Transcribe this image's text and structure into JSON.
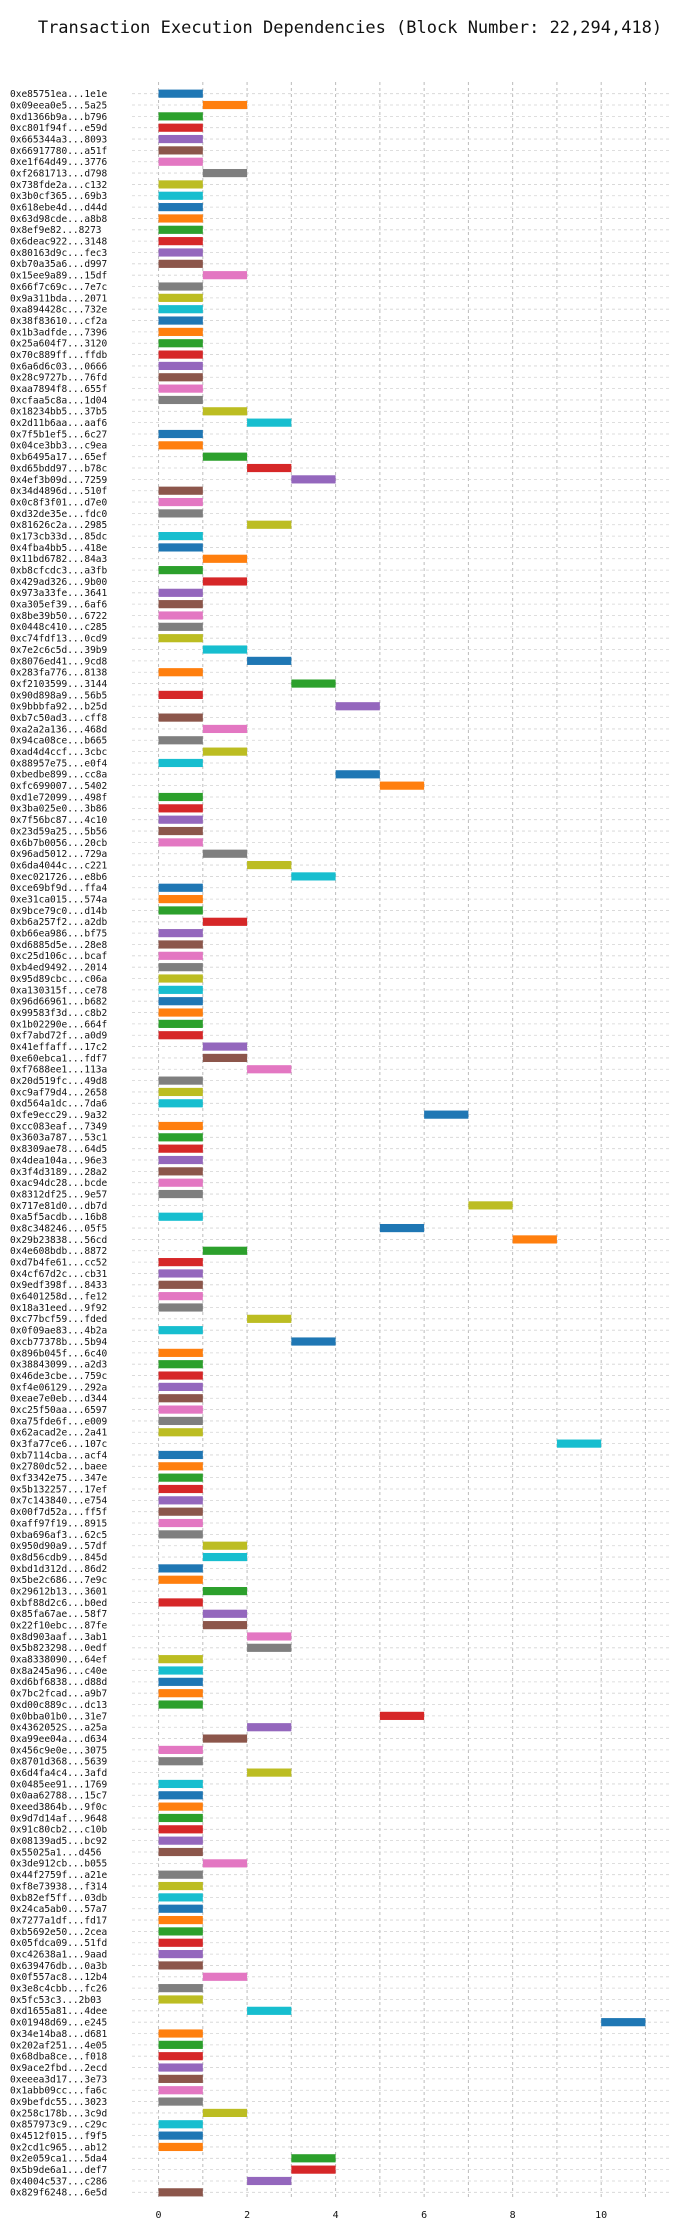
{
  "chart_data": {
    "type": "bar",
    "orientation": "horizontal-timeline",
    "title": "Transaction Execution Dependencies (Block Number: 22,294,418)",
    "xlabel": "",
    "ylabel": "",
    "xlim": [
      -0.6,
      11.6
    ],
    "xticks": [
      0,
      2,
      4,
      6,
      8,
      10
    ],
    "grid": true,
    "palette": [
      "#1f77b4",
      "#ff7f0e",
      "#2ca02c",
      "#d62728",
      "#9467bd",
      "#8c564b",
      "#e377c2",
      "#7f7f7f",
      "#bcbd22",
      "#17becf"
    ],
    "transactions": [
      {
        "label": "0xe85751ea...1e1e",
        "start": 0,
        "color": "#1f77b4"
      },
      {
        "label": "0x09eea0e5...5a25",
        "start": 1,
        "color": "#ff7f0e"
      },
      {
        "label": "0xd1366b9a...b796",
        "start": 0,
        "color": "#2ca02c"
      },
      {
        "label": "0xc801f94f...e59d",
        "start": 0,
        "color": "#d62728"
      },
      {
        "label": "0x665344a3...8093",
        "start": 0,
        "color": "#9467bd"
      },
      {
        "label": "0x66917780...a51f",
        "start": 0,
        "color": "#8c564b"
      },
      {
        "label": "0xe1f64d49...3776",
        "start": 0,
        "color": "#e377c2"
      },
      {
        "label": "0xf2681713...d798",
        "start": 1,
        "color": "#7f7f7f"
      },
      {
        "label": "0x738fde2a...c132",
        "start": 0,
        "color": "#bcbd22"
      },
      {
        "label": "0x3b0cf365...69b3",
        "start": 0,
        "color": "#17becf"
      },
      {
        "label": "0x618ebe4d...d44d",
        "start": 0,
        "color": "#1f77b4"
      },
      {
        "label": "0x63d98cde...a8b8",
        "start": 0,
        "color": "#ff7f0e"
      },
      {
        "label": "0x8ef9e82...8273",
        "start": 0,
        "color": "#2ca02c"
      },
      {
        "label": "0x6deac922...3148",
        "start": 0,
        "color": "#d62728"
      },
      {
        "label": "0x80163d9c...fec3",
        "start": 0,
        "color": "#9467bd"
      },
      {
        "label": "0xb70a35a6...d997",
        "start": 0,
        "color": "#8c564b"
      },
      {
        "label": "0x15ee9a89...15df",
        "start": 1,
        "color": "#e377c2"
      },
      {
        "label": "0x66f7c69c...7e7c",
        "start": 0,
        "color": "#7f7f7f"
      },
      {
        "label": "0x9a311bda...2071",
        "start": 0,
        "color": "#bcbd22"
      },
      {
        "label": "0xa894428c...732e",
        "start": 0,
        "color": "#17becf"
      },
      {
        "label": "0x38f83610...cf2a",
        "start": 0,
        "color": "#1f77b4"
      },
      {
        "label": "0x1b3adfde...7396",
        "start": 0,
        "color": "#ff7f0e"
      },
      {
        "label": "0x25a604f7...3120",
        "start": 0,
        "color": "#2ca02c"
      },
      {
        "label": "0x70c889ff...ffdb",
        "start": 0,
        "color": "#d62728"
      },
      {
        "label": "0x6a6d6c03...0666",
        "start": 0,
        "color": "#9467bd"
      },
      {
        "label": "0x28c9727b...76fd",
        "start": 0,
        "color": "#8c564b"
      },
      {
        "label": "0xaa7894f8...655f",
        "start": 0,
        "color": "#e377c2"
      },
      {
        "label": "0xcfaa5c8a...1d04",
        "start": 0,
        "color": "#7f7f7f"
      },
      {
        "label": "0x18234bb5...37b5",
        "start": 1,
        "color": "#bcbd22"
      },
      {
        "label": "0x2d11b6aa...aaf6",
        "start": 2,
        "color": "#17becf"
      },
      {
        "label": "0x7f5b1ef5...6c27",
        "start": 0,
        "color": "#1f77b4"
      },
      {
        "label": "0x04ce3bb3...c9ea",
        "start": 0,
        "color": "#ff7f0e"
      },
      {
        "label": "0xb6495a17...65ef",
        "start": 1,
        "color": "#2ca02c"
      },
      {
        "label": "0xd65bdd97...b78c",
        "start": 2,
        "color": "#d62728"
      },
      {
        "label": "0x4ef3b09d...7259",
        "start": 3,
        "color": "#9467bd"
      },
      {
        "label": "0x34d4896d...510f",
        "start": 0,
        "color": "#8c564b"
      },
      {
        "label": "0x0c8f3f01...d7e0",
        "start": 0,
        "color": "#e377c2"
      },
      {
        "label": "0xd32de35e...fdc0",
        "start": 0,
        "color": "#7f7f7f"
      },
      {
        "label": "0x81626c2a...2985",
        "start": 2,
        "color": "#bcbd22"
      },
      {
        "label": "0x173cb33d...85dc",
        "start": 0,
        "color": "#17becf"
      },
      {
        "label": "0x4fba4bb5...418e",
        "start": 0,
        "color": "#1f77b4"
      },
      {
        "label": "0x11bd6782...84a3",
        "start": 1,
        "color": "#ff7f0e"
      },
      {
        "label": "0xb8cfcdc3...a3fb",
        "start": 0,
        "color": "#2ca02c"
      },
      {
        "label": "0x429ad326...9b00",
        "start": 1,
        "color": "#d62728"
      },
      {
        "label": "0x973a33fe...3641",
        "start": 0,
        "color": "#9467bd"
      },
      {
        "label": "0xa305ef39...6af6",
        "start": 0,
        "color": "#8c564b"
      },
      {
        "label": "0x8be39b50...6722",
        "start": 0,
        "color": "#e377c2"
      },
      {
        "label": "0x0448c410...c285",
        "start": 0,
        "color": "#7f7f7f"
      },
      {
        "label": "0xc74fdf13...0cd9",
        "start": 0,
        "color": "#bcbd22"
      },
      {
        "label": "0x7e2c6c5d...39b9",
        "start": 1,
        "color": "#17becf"
      },
      {
        "label": "0x8076ed41...9cd8",
        "start": 2,
        "color": "#1f77b4"
      },
      {
        "label": "0x283fa776...8138",
        "start": 0,
        "color": "#ff7f0e"
      },
      {
        "label": "0xf2103599...3144",
        "start": 3,
        "color": "#2ca02c"
      },
      {
        "label": "0x90d898a9...56b5",
        "start": 0,
        "color": "#d62728"
      },
      {
        "label": "0x9bbbfa92...b25d",
        "start": 4,
        "color": "#9467bd"
      },
      {
        "label": "0xb7c50ad3...cff8",
        "start": 0,
        "color": "#8c564b"
      },
      {
        "label": "0xa2a2a136...468d",
        "start": 1,
        "color": "#e377c2"
      },
      {
        "label": "0x94ca08ce...b665",
        "start": 0,
        "color": "#7f7f7f"
      },
      {
        "label": "0xad4d4ccf...3cbc",
        "start": 1,
        "color": "#bcbd22"
      },
      {
        "label": "0x88957e75...e0f4",
        "start": 0,
        "color": "#17becf"
      },
      {
        "label": "0xbedbe899...cc8a",
        "start": 4,
        "color": "#1f77b4"
      },
      {
        "label": "0xfc699007...5402",
        "start": 5,
        "color": "#ff7f0e"
      },
      {
        "label": "0xd1e72099...498f",
        "start": 0,
        "color": "#2ca02c"
      },
      {
        "label": "0x3ba025e0...3b86",
        "start": 0,
        "color": "#d62728"
      },
      {
        "label": "0x7f56bc87...4c10",
        "start": 0,
        "color": "#9467bd"
      },
      {
        "label": "0x23d59a25...5b56",
        "start": 0,
        "color": "#8c564b"
      },
      {
        "label": "0x6b7b0056...20cb",
        "start": 0,
        "color": "#e377c2"
      },
      {
        "label": "0x96ad5012...729a",
        "start": 1,
        "color": "#7f7f7f"
      },
      {
        "label": "0x6da4044c...c221",
        "start": 2,
        "color": "#bcbd22"
      },
      {
        "label": "0xec021726...e8b6",
        "start": 3,
        "color": "#17becf"
      },
      {
        "label": "0xce69bf9d...ffa4",
        "start": 0,
        "color": "#1f77b4"
      },
      {
        "label": "0xe31ca015...574a",
        "start": 0,
        "color": "#ff7f0e"
      },
      {
        "label": "0x9bce79c0...d14b",
        "start": 0,
        "color": "#2ca02c"
      },
      {
        "label": "0xb6a257f2...a2db",
        "start": 1,
        "color": "#d62728"
      },
      {
        "label": "0xb66ea986...bf75",
        "start": 0,
        "color": "#9467bd"
      },
      {
        "label": "0xd6885d5e...28e8",
        "start": 0,
        "color": "#8c564b"
      },
      {
        "label": "0xc25d106c...bcaf",
        "start": 0,
        "color": "#e377c2"
      },
      {
        "label": "0xb4ed9492...2014",
        "start": 0,
        "color": "#7f7f7f"
      },
      {
        "label": "0x95d89cbc...c06a",
        "start": 0,
        "color": "#bcbd22"
      },
      {
        "label": "0xa130315f...ce78",
        "start": 0,
        "color": "#17becf"
      },
      {
        "label": "0x96d66961...b682",
        "start": 0,
        "color": "#1f77b4"
      },
      {
        "label": "0x99583f3d...c8b2",
        "start": 0,
        "color": "#ff7f0e"
      },
      {
        "label": "0x1b02290e...664f",
        "start": 0,
        "color": "#2ca02c"
      },
      {
        "label": "0xf7abd72f...a0d9",
        "start": 0,
        "color": "#d62728"
      },
      {
        "label": "0x41effaff...17c2",
        "start": 1,
        "color": "#9467bd"
      },
      {
        "label": "0xe60ebca1...fdf7",
        "start": 1,
        "color": "#8c564b"
      },
      {
        "label": "0xf7688ee1...113a",
        "start": 2,
        "color": "#e377c2"
      },
      {
        "label": "0x20d519fc...49d8",
        "start": 0,
        "color": "#7f7f7f"
      },
      {
        "label": "0xc9af79d4...2658",
        "start": 0,
        "color": "#bcbd22"
      },
      {
        "label": "0xd564a1dc...7da6",
        "start": 0,
        "color": "#17becf"
      },
      {
        "label": "0xfe9ecc29...9a32",
        "start": 6,
        "color": "#1f77b4"
      },
      {
        "label": "0xcc083eaf...7349",
        "start": 0,
        "color": "#ff7f0e"
      },
      {
        "label": "0x3603a787...53c1",
        "start": 0,
        "color": "#2ca02c"
      },
      {
        "label": "0x8309ae78...64d5",
        "start": 0,
        "color": "#d62728"
      },
      {
        "label": "0x4dea104a...96e3",
        "start": 0,
        "color": "#9467bd"
      },
      {
        "label": "0x3f4d3189...28a2",
        "start": 0,
        "color": "#8c564b"
      },
      {
        "label": "0xac94dc28...bcde",
        "start": 0,
        "color": "#e377c2"
      },
      {
        "label": "0x8312df25...9e57",
        "start": 0,
        "color": "#7f7f7f"
      },
      {
        "label": "0x717e81d0...db7d",
        "start": 7,
        "color": "#bcbd22"
      },
      {
        "label": "0xa5f5acdb...16b8",
        "start": 0,
        "color": "#17becf"
      },
      {
        "label": "0x8c348246...05f5",
        "start": 5,
        "color": "#1f77b4"
      },
      {
        "label": "0x29b23838...56cd",
        "start": 8,
        "color": "#ff7f0e"
      },
      {
        "label": "0x4e608bdb...8872",
        "start": 1,
        "color": "#2ca02c"
      },
      {
        "label": "0xd7b4fe61...cc52",
        "start": 0,
        "color": "#d62728"
      },
      {
        "label": "0x4cf67d2c...cb31",
        "start": 0,
        "color": "#9467bd"
      },
      {
        "label": "0x9edf398f...8433",
        "start": 0,
        "color": "#8c564b"
      },
      {
        "label": "0x6401258d...fe12",
        "start": 0,
        "color": "#e377c2"
      },
      {
        "label": "0x18a31eed...9f92",
        "start": 0,
        "color": "#7f7f7f"
      },
      {
        "label": "0xc77bcf59...fded",
        "start": 2,
        "color": "#bcbd22"
      },
      {
        "label": "0x0f09ae83...4b2a",
        "start": 0,
        "color": "#17becf"
      },
      {
        "label": "0xcb77378b...5b94",
        "start": 3,
        "color": "#1f77b4"
      },
      {
        "label": "0x896b045f...6c40",
        "start": 0,
        "color": "#ff7f0e"
      },
      {
        "label": "0x38843099...a2d3",
        "start": 0,
        "color": "#2ca02c"
      },
      {
        "label": "0x46de3cbe...759c",
        "start": 0,
        "color": "#d62728"
      },
      {
        "label": "0xf4e06129...292a",
        "start": 0,
        "color": "#9467bd"
      },
      {
        "label": "0xeae7e0eb...d344",
        "start": 0,
        "color": "#8c564b"
      },
      {
        "label": "0xc25f50aa...6597",
        "start": 0,
        "color": "#e377c2"
      },
      {
        "label": "0xa75fde6f...e009",
        "start": 0,
        "color": "#7f7f7f"
      },
      {
        "label": "0x62acad2e...2a41",
        "start": 0,
        "color": "#bcbd22"
      },
      {
        "label": "0x3fa77ce6...107c",
        "start": 9,
        "color": "#17becf"
      },
      {
        "label": "0xb7114cba...acf4",
        "start": 0,
        "color": "#1f77b4"
      },
      {
        "label": "0x2780dc52...baee",
        "start": 0,
        "color": "#ff7f0e"
      },
      {
        "label": "0xf3342e75...347e",
        "start": 0,
        "color": "#2ca02c"
      },
      {
        "label": "0x5b132257...17ef",
        "start": 0,
        "color": "#d62728"
      },
      {
        "label": "0x7c143840...e754",
        "start": 0,
        "color": "#9467bd"
      },
      {
        "label": "0x00f7d52a...ff5f",
        "start": 0,
        "color": "#8c564b"
      },
      {
        "label": "0xaff97f19...8915",
        "start": 0,
        "color": "#e377c2"
      },
      {
        "label": "0xba696af3...62c5",
        "start": 0,
        "color": "#7f7f7f"
      },
      {
        "label": "0x950d90a9...57df",
        "start": 1,
        "color": "#bcbd22"
      },
      {
        "label": "0x8d56cdb9...845d",
        "start": 1,
        "color": "#17becf"
      },
      {
        "label": "0xbd1d312d...86d2",
        "start": 0,
        "color": "#1f77b4"
      },
      {
        "label": "0x5be2c686...7e9c",
        "start": 0,
        "color": "#ff7f0e"
      },
      {
        "label": "0x29612b13...3601",
        "start": 1,
        "color": "#2ca02c"
      },
      {
        "label": "0xbf88d2c6...b0ed",
        "start": 0,
        "color": "#d62728"
      },
      {
        "label": "0x85fa67ae...58f7",
        "start": 1,
        "color": "#9467bd"
      },
      {
        "label": "0x22f10ebc...87fe",
        "start": 1,
        "color": "#8c564b"
      },
      {
        "label": "0x8d903aaf...3ab1",
        "start": 2,
        "color": "#e377c2"
      },
      {
        "label": "0x5b823298...0edf",
        "start": 2,
        "color": "#7f7f7f"
      },
      {
        "label": "0xa8338090...64ef",
        "start": 0,
        "color": "#bcbd22"
      },
      {
        "label": "0x8a245a96...c40e",
        "start": 0,
        "color": "#17becf"
      },
      {
        "label": "0xd6bf6838...d88d",
        "start": 0,
        "color": "#1f77b4"
      },
      {
        "label": "0x7bc2fcad...a9b7",
        "start": 0,
        "color": "#ff7f0e"
      },
      {
        "label": "0xd00c889c...dc13",
        "start": 0,
        "color": "#2ca02c"
      },
      {
        "label": "0x0bba01b0...31e7",
        "start": 5,
        "color": "#d62728"
      },
      {
        "label": "0x4362052S...a25a",
        "start": 2,
        "color": "#9467bd"
      },
      {
        "label": "0xa99ee04a...d634",
        "start": 1,
        "color": "#8c564b"
      },
      {
        "label": "0x456c9e0e...3075",
        "start": 0,
        "color": "#e377c2"
      },
      {
        "label": "0x8701d368...5639",
        "start": 0,
        "color": "#7f7f7f"
      },
      {
        "label": "0x6d4fa4c4...3afd",
        "start": 2,
        "color": "#bcbd22"
      },
      {
        "label": "0x0485ee91...1769",
        "start": 0,
        "color": "#17becf"
      },
      {
        "label": "0x0aa62788...15c7",
        "start": 0,
        "color": "#1f77b4"
      },
      {
        "label": "0xeed3864b...9f0c",
        "start": 0,
        "color": "#ff7f0e"
      },
      {
        "label": "0x9d7d14af...9648",
        "start": 0,
        "color": "#2ca02c"
      },
      {
        "label": "0x91c80cb2...c10b",
        "start": 0,
        "color": "#d62728"
      },
      {
        "label": "0x08139ad5...bc92",
        "start": 0,
        "color": "#9467bd"
      },
      {
        "label": "0x55025a1...d456",
        "start": 0,
        "color": "#8c564b"
      },
      {
        "label": "0x3de912cb...b055",
        "start": 1,
        "color": "#e377c2"
      },
      {
        "label": "0x44f2759f...a21e",
        "start": 0,
        "color": "#7f7f7f"
      },
      {
        "label": "0xf8e73938...f314",
        "start": 0,
        "color": "#bcbd22"
      },
      {
        "label": "0xb82ef5ff...03db",
        "start": 0,
        "color": "#17becf"
      },
      {
        "label": "0x24ca5ab0...57a7",
        "start": 0,
        "color": "#1f77b4"
      },
      {
        "label": "0x7277a1df...fd17",
        "start": 0,
        "color": "#ff7f0e"
      },
      {
        "label": "0xb5692e50...2cea",
        "start": 0,
        "color": "#2ca02c"
      },
      {
        "label": "0x05fdca09...51fd",
        "start": 0,
        "color": "#d62728"
      },
      {
        "label": "0xc42638a1...9aad",
        "start": 0,
        "color": "#9467bd"
      },
      {
        "label": "0x639476db...0a3b",
        "start": 0,
        "color": "#8c564b"
      },
      {
        "label": "0x0f557ac8...12b4",
        "start": 1,
        "color": "#e377c2"
      },
      {
        "label": "0x3e8c4cbb...fc26",
        "start": 0,
        "color": "#7f7f7f"
      },
      {
        "label": "0x5fc53c3...2b03",
        "start": 0,
        "color": "#bcbd22"
      },
      {
        "label": "0xd1655a81...4dee",
        "start": 2,
        "color": "#17becf"
      },
      {
        "label": "0x01948d69...e245",
        "start": 10,
        "color": "#1f77b4"
      },
      {
        "label": "0x34e14ba8...d681",
        "start": 0,
        "color": "#ff7f0e"
      },
      {
        "label": "0x202af251...4e05",
        "start": 0,
        "color": "#2ca02c"
      },
      {
        "label": "0x68dba8ce...f018",
        "start": 0,
        "color": "#d62728"
      },
      {
        "label": "0x9ace2fbd...2ecd",
        "start": 0,
        "color": "#9467bd"
      },
      {
        "label": "0xeeea3d17...3e73",
        "start": 0,
        "color": "#8c564b"
      },
      {
        "label": "0x1abb09cc...fa6c",
        "start": 0,
        "color": "#e377c2"
      },
      {
        "label": "0x9befdc55...3023",
        "start": 0,
        "color": "#7f7f7f"
      },
      {
        "label": "0x258c178b...3c9d",
        "start": 1,
        "color": "#bcbd22"
      },
      {
        "label": "0x857973c9...c29c",
        "start": 0,
        "color": "#17becf"
      },
      {
        "label": "0x4512f015...f9f5",
        "start": 0,
        "color": "#1f77b4"
      },
      {
        "label": "0x2cd1c965...ab12",
        "start": 0,
        "color": "#ff7f0e"
      },
      {
        "label": "0x2e059ca1...5da4",
        "start": 3,
        "color": "#2ca02c"
      },
      {
        "label": "0x5b9de6a1...def7",
        "start": 3,
        "color": "#d62728"
      },
      {
        "label": "0x4004c537...c286",
        "start": 2,
        "color": "#9467bd"
      },
      {
        "label": "0x829f6248...6e5d",
        "start": 0,
        "color": "#8c564b"
      }
    ]
  }
}
